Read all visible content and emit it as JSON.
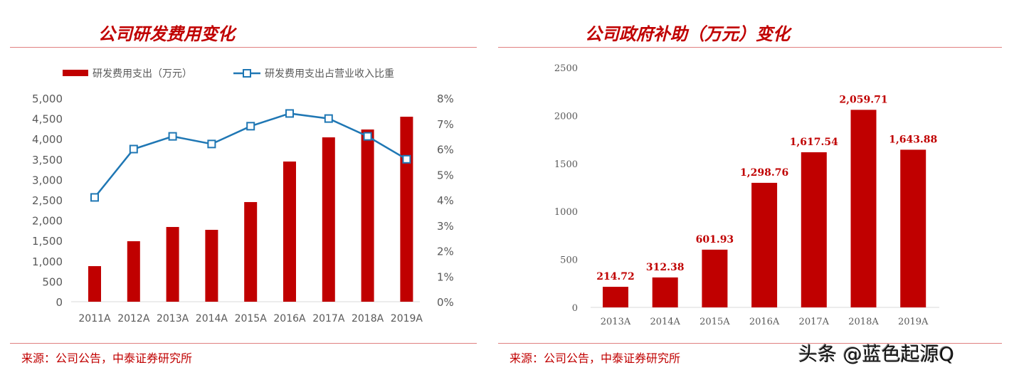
{
  "left": {
    "title": "公司研发费用变化",
    "source": "来源：公司公告，中泰证券研究所"
  },
  "right": {
    "title": "公司政府补助（万元）变化",
    "source": "来源：公司公告，中泰证券研究所"
  },
  "watermark": "头条 @蓝色起源Q",
  "chart_data": [
    {
      "type": "bar+line",
      "title": "公司研发费用变化",
      "categories": [
        "2011A",
        "2012A",
        "2013A",
        "2014A",
        "2015A",
        "2016A",
        "2017A",
        "2018A",
        "2019A"
      ],
      "series": [
        {
          "name": "研发费用支出（万元）",
          "type": "bar",
          "axis": "left",
          "color": "#c00000",
          "values": [
            874,
            1486,
            1836,
            1766,
            2448,
            3444,
            4038,
            4231,
            4545
          ]
        },
        {
          "name": "研发费用支出占营业收入比重",
          "type": "line",
          "axis": "right",
          "color": "#1f77b4",
          "values": [
            4.1,
            6.0,
            6.5,
            6.2,
            6.9,
            7.4,
            7.2,
            6.5,
            5.6
          ]
        }
      ],
      "ylim": [
        0,
        5000
      ],
      "yticks": [
        "0",
        "500",
        "1,000",
        "1,500",
        "2,000",
        "2,500",
        "3,000",
        "3,500",
        "4,000",
        "4,500",
        "5,000"
      ],
      "y2lim": [
        0,
        8
      ],
      "y2ticks": [
        "0%",
        "1%",
        "2%",
        "3%",
        "4%",
        "5%",
        "6%",
        "7%",
        "8%"
      ],
      "legend": "top",
      "grid": false
    },
    {
      "type": "bar",
      "title": "公司政府补助（万元）变化",
      "categories": [
        "2013A",
        "2014A",
        "2015A",
        "2016A",
        "2017A",
        "2018A",
        "2019A"
      ],
      "values": [
        214.72,
        312.38,
        601.93,
        1298.76,
        1617.54,
        2059.71,
        1643.88
      ],
      "labels": [
        "214.72",
        "312.38",
        "601.93",
        "1,298.76",
        "1,617.54",
        "2,059.71",
        "1,643.88"
      ],
      "color": "#c00000",
      "ylim": [
        0,
        2500
      ],
      "yticks": [
        "0",
        "500",
        "1000",
        "1500",
        "2000",
        "2500"
      ],
      "grid": false
    }
  ]
}
